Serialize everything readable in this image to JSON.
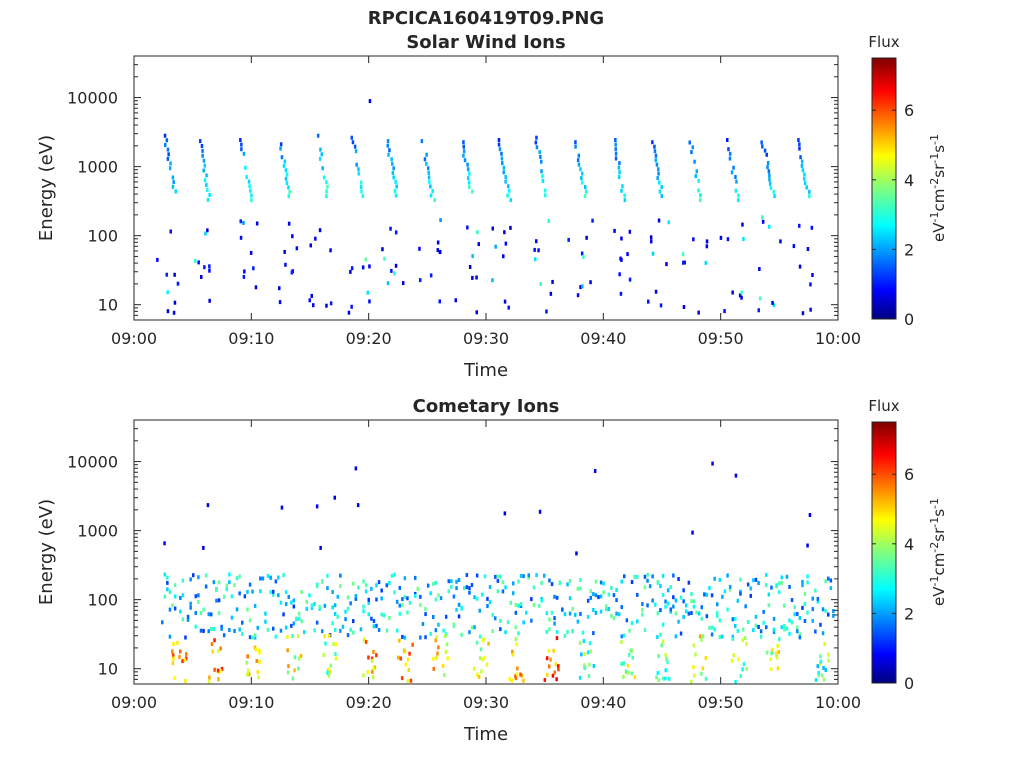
{
  "figure": {
    "title": "RPCICA160419T09.PNG"
  },
  "chart_data": [
    {
      "type": "heatmap",
      "title": "Solar Wind Ions",
      "xlabel": "Time",
      "ylabel": "Energy (eV)",
      "x_ticks": [
        "09:00",
        "09:10",
        "09:20",
        "09:30",
        "09:40",
        "09:50",
        "10:00"
      ],
      "xlim_minutes": [
        0,
        60
      ],
      "y_scale": "log",
      "ylim": [
        6,
        40000
      ],
      "y_ticks": [
        10,
        100,
        1000,
        10000
      ],
      "y_tick_labels": [
        "10",
        "100",
        "1000",
        "10000"
      ],
      "colorbar": {
        "title": "Flux",
        "label": "eV-1cm-2sr-1s-1",
        "ticks": [
          0,
          2,
          4,
          6
        ],
        "tick_labels": [
          "0",
          "2",
          "4",
          "6"
        ],
        "range": [
          0,
          7.5
        ],
        "colormap": "jet"
      },
      "bursts": [
        {
          "t": 2.5,
          "e_high": 3000,
          "e_low": 400,
          "flux": 2.5
        },
        {
          "t": 5.5,
          "e_high": 2500,
          "e_low": 300,
          "flux": 2.8
        },
        {
          "t": 9.0,
          "e_high": 2600,
          "e_low": 350,
          "flux": 3.0
        },
        {
          "t": 12.3,
          "e_high": 2600,
          "e_low": 400,
          "flux": 3.0
        },
        {
          "t": 15.5,
          "e_high": 3000,
          "e_low": 400,
          "flux": 3.2
        },
        {
          "t": 18.5,
          "e_high": 2800,
          "e_low": 400,
          "flux": 3.0
        },
        {
          "t": 21.5,
          "e_high": 2500,
          "e_low": 350,
          "flux": 3.0
        },
        {
          "t": 24.5,
          "e_high": 2500,
          "e_low": 350,
          "flux": 2.8
        },
        {
          "t": 27.8,
          "e_high": 2800,
          "e_low": 400,
          "flux": 3.0
        },
        {
          "t": 31.0,
          "e_high": 2600,
          "e_low": 350,
          "flux": 2.8
        },
        {
          "t": 34.2,
          "e_high": 2800,
          "e_low": 350,
          "flux": 3.0
        },
        {
          "t": 37.5,
          "e_high": 2800,
          "e_low": 400,
          "flux": 2.8
        },
        {
          "t": 40.8,
          "e_high": 2600,
          "e_low": 350,
          "flux": 2.8
        },
        {
          "t": 44.0,
          "e_high": 2800,
          "e_low": 400,
          "flux": 2.6
        },
        {
          "t": 47.3,
          "e_high": 2800,
          "e_low": 350,
          "flux": 2.8
        },
        {
          "t": 50.5,
          "e_high": 2600,
          "e_low": 350,
          "flux": 2.6
        },
        {
          "t": 53.5,
          "e_high": 2400,
          "e_low": 400,
          "flux": 2.6
        },
        {
          "t": 56.5,
          "e_high": 2600,
          "e_low": 400,
          "flux": 2.6
        }
      ],
      "scatter_energy_range": [
        8,
        200
      ],
      "outliers": [
        {
          "t": 20.0,
          "e": 9500,
          "flux": 0.8
        }
      ]
    },
    {
      "type": "heatmap",
      "title": "Cometary Ions",
      "xlabel": "Time",
      "ylabel": "Energy (eV)",
      "x_ticks": [
        "09:00",
        "09:10",
        "09:20",
        "09:30",
        "09:40",
        "09:50",
        "10:00"
      ],
      "xlim_minutes": [
        0,
        60
      ],
      "y_scale": "log",
      "ylim": [
        6,
        40000
      ],
      "y_ticks": [
        10,
        100,
        1000,
        10000
      ],
      "y_tick_labels": [
        "10",
        "100",
        "1000",
        "10000"
      ],
      "colorbar": {
        "title": "Flux",
        "label": "eV-1cm-2sr-1s-1",
        "ticks": [
          0,
          2,
          4,
          6
        ],
        "tick_labels": [
          "0",
          "2",
          "4",
          "6"
        ],
        "range": [
          0,
          7.5
        ],
        "colormap": "jet"
      },
      "band_energy_range": [
        30,
        250
      ],
      "band_flux": 2.5,
      "low_energy_bursts": [
        {
          "t": 3.8,
          "flux": 5.2
        },
        {
          "t": 6.8,
          "flux": 5.4
        },
        {
          "t": 10.0,
          "flux": 4.6
        },
        {
          "t": 13.5,
          "flux": 4.4
        },
        {
          "t": 16.5,
          "flux": 4.0
        },
        {
          "t": 20.0,
          "flux": 5.2
        },
        {
          "t": 23.0,
          "flux": 5.4
        },
        {
          "t": 26.0,
          "flux": 4.8
        },
        {
          "t": 29.5,
          "flux": 4.2
        },
        {
          "t": 32.5,
          "flux": 5.0
        },
        {
          "t": 35.5,
          "flux": 5.6
        },
        {
          "t": 38.5,
          "flux": 3.4
        },
        {
          "t": 42.0,
          "flux": 4.2
        },
        {
          "t": 45.0,
          "flux": 3.4
        },
        {
          "t": 48.0,
          "flux": 4.4
        },
        {
          "t": 51.5,
          "flux": 3.6
        },
        {
          "t": 54.5,
          "flux": 4.2
        },
        {
          "t": 58.5,
          "flux": 3.4
        }
      ],
      "outliers": [
        {
          "t": 6.2,
          "e": 2500,
          "flux": 0.8
        },
        {
          "t": 12.5,
          "e": 2300,
          "flux": 0.8
        },
        {
          "t": 15.5,
          "e": 2400,
          "flux": 0.8
        },
        {
          "t": 17.0,
          "e": 3200,
          "flux": 0.8
        },
        {
          "t": 18.8,
          "e": 8500,
          "flux": 0.8
        },
        {
          "t": 19.0,
          "e": 2500,
          "flux": 0.8
        },
        {
          "t": 31.5,
          "e": 1900,
          "flux": 0.8
        },
        {
          "t": 34.5,
          "e": 2000,
          "flux": 0.8
        },
        {
          "t": 39.2,
          "e": 7800,
          "flux": 0.8
        },
        {
          "t": 47.5,
          "e": 1000,
          "flux": 0.8
        },
        {
          "t": 49.2,
          "e": 10000,
          "flux": 0.8
        },
        {
          "t": 51.2,
          "e": 6700,
          "flux": 0.8
        },
        {
          "t": 57.5,
          "e": 1800,
          "flux": 0.8
        },
        {
          "t": 2.5,
          "e": 700,
          "flux": 1.0
        },
        {
          "t": 5.8,
          "e": 600,
          "flux": 0.8
        },
        {
          "t": 15.8,
          "e": 600,
          "flux": 0.8
        },
        {
          "t": 37.6,
          "e": 500,
          "flux": 0.8
        },
        {
          "t": 57.3,
          "e": 650,
          "flux": 0.8
        }
      ]
    }
  ]
}
